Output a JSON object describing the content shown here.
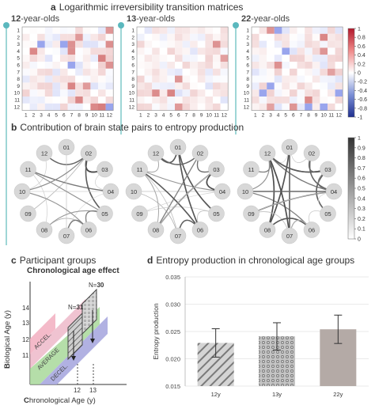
{
  "panel_a": {
    "letter": "a",
    "title": "Logarithmic irreversibility transition matrices",
    "matrices": [
      {
        "age_bold": "12",
        "age_rest": "-year-olds"
      },
      {
        "age_bold": "13",
        "age_rest": "-year-olds"
      },
      {
        "age_bold": "22",
        "age_rest": "-year-olds"
      }
    ],
    "axis_ticks": [
      "1",
      "2",
      "3",
      "4",
      "5",
      "6",
      "7",
      "8",
      "9",
      "10",
      "11",
      "12"
    ],
    "colorbar_ticks": [
      "1",
      "0.8",
      "0.6",
      "0.4",
      "0.2",
      "0",
      "-0.2",
      "-0.4",
      "-0.6",
      "-0.8",
      "-1"
    ]
  },
  "panel_b": {
    "letter": "b",
    "title": "Contribution of brain state pairs to entropy production",
    "nodes": [
      "01",
      "02",
      "03",
      "04",
      "05",
      "06",
      "07",
      "08",
      "09",
      "10",
      "11",
      "12"
    ],
    "colorbar_ticks": [
      "1",
      "0.9",
      "0.8",
      "0.7",
      "0.6",
      "0.5",
      "0.4",
      "0.3",
      "0.2",
      "0.1",
      "0"
    ]
  },
  "panel_c": {
    "letter": "c",
    "title": "Participant groups",
    "subtitle": "Chronological age effect",
    "ylabel_bold": "B",
    "ylabel_rest": "iological Age (y)",
    "xlabel_bold": "C",
    "xlabel_rest": "hronological Age (y)",
    "yticks": [
      "14",
      "13",
      "12",
      "11"
    ],
    "xticks": [
      "12",
      "13"
    ],
    "bands": [
      "ACCEL.",
      "AVERAGE",
      "DECEL."
    ],
    "n1_prefix": "N=",
    "n1_value": "31",
    "n2_prefix": "N=",
    "n2_value": "30"
  },
  "panel_d": {
    "letter": "d",
    "title": "Entropy production in chronological age groups"
  },
  "chart_data": {
    "type": "bar",
    "categories": [
      "12y",
      "13y",
      "22y"
    ],
    "values": [
      0.0229,
      0.0241,
      0.0254
    ],
    "errors_low": [
      0.0203,
      0.0216,
      0.0228
    ],
    "errors_high": [
      0.0255,
      0.0266,
      0.028
    ],
    "xlabel": "",
    "ylabel": "Entropy production",
    "ylim": [
      0.015,
      0.035
    ],
    "yticks": [
      "0.035",
      "0.030",
      "0.025",
      "0.020",
      "0.015"
    ],
    "colors": [
      "#8a8a8a",
      "#b8b8b8",
      "#b4aaa6"
    ],
    "grid": true
  }
}
